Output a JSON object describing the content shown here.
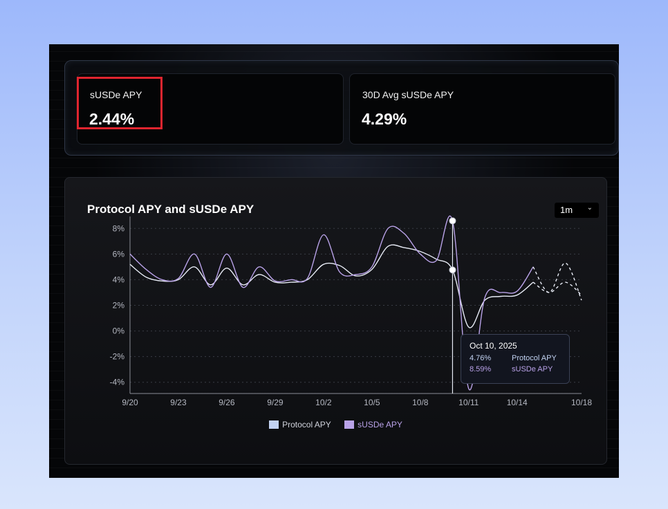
{
  "stats": {
    "apy_label": "sUSDe APY",
    "apy_value": "2.44%",
    "avg_label": "30D Avg sUSDe APY",
    "avg_value": "4.29%"
  },
  "chart_title": "Protocol APY and sUSDe APY",
  "range_select": {
    "value": "1m",
    "icon": "chevron-down-icon"
  },
  "colors": {
    "protocol": "#c3d3f3",
    "susde": "#b9a2e8",
    "highlight": "#e0252f"
  },
  "tooltip": {
    "date": "Oct 10, 2025",
    "rows": [
      {
        "value": "4.76%",
        "name": "Protocol APY"
      },
      {
        "value": "8.59%",
        "name": "sUSDe APY"
      }
    ]
  },
  "chart_data": {
    "type": "line",
    "x_ticks": [
      "9/20",
      "9/23",
      "9/26",
      "9/29",
      "10/2",
      "10/5",
      "10/8",
      "10/11",
      "10/14",
      "10/18"
    ],
    "y_ticks": [
      "8%",
      "6%",
      "4%",
      "2%",
      "0%",
      "-2%",
      "-4%"
    ],
    "ylim": [
      -4.5,
      8.5
    ],
    "grid": true,
    "legend_position": "bottom",
    "series": [
      {
        "name": "Protocol APY",
        "dates": [
          "2025-09-20",
          "2025-09-21",
          "2025-09-22",
          "2025-09-23",
          "2025-09-24",
          "2025-09-25",
          "2025-09-26",
          "2025-09-27",
          "2025-09-28",
          "2025-09-29",
          "2025-09-30",
          "2025-10-01",
          "2025-10-02",
          "2025-10-03",
          "2025-10-04",
          "2025-10-05",
          "2025-10-06",
          "2025-10-07",
          "2025-10-08",
          "2025-10-09",
          "2025-10-10",
          "2025-10-11",
          "2025-10-12",
          "2025-10-13",
          "2025-10-14",
          "2025-10-15",
          "2025-10-16",
          "2025-10-17",
          "2025-10-18"
        ],
        "values": [
          5.2,
          4.2,
          3.9,
          4.0,
          5.0,
          3.6,
          4.9,
          3.6,
          4.4,
          3.8,
          3.8,
          4.0,
          5.2,
          5.1,
          4.3,
          4.8,
          6.6,
          6.5,
          6.2,
          5.6,
          4.76,
          0.3,
          2.4,
          2.7,
          2.8,
          3.8,
          3.0,
          3.8,
          2.8
        ],
        "forecast_from": "2025-10-15"
      },
      {
        "name": "sUSDe APY",
        "dates": [
          "2025-09-20",
          "2025-09-21",
          "2025-09-22",
          "2025-09-23",
          "2025-09-24",
          "2025-09-25",
          "2025-09-26",
          "2025-09-27",
          "2025-09-28",
          "2025-09-29",
          "2025-09-30",
          "2025-10-01",
          "2025-10-02",
          "2025-10-03",
          "2025-10-04",
          "2025-10-05",
          "2025-10-06",
          "2025-10-07",
          "2025-10-08",
          "2025-10-09",
          "2025-10-10",
          "2025-10-11",
          "2025-10-12",
          "2025-10-13",
          "2025-10-14",
          "2025-10-15",
          "2025-10-16",
          "2025-10-17",
          "2025-10-18"
        ],
        "values": [
          6.0,
          4.8,
          4.0,
          4.1,
          6.0,
          3.4,
          6.0,
          3.4,
          5.0,
          3.9,
          4.0,
          4.1,
          7.5,
          4.6,
          4.4,
          5.0,
          8.0,
          7.6,
          6.0,
          5.5,
          8.59,
          -4.5,
          2.6,
          3.0,
          3.1,
          5.0,
          3.0,
          5.3,
          2.4
        ],
        "forecast_from": "2025-10-15"
      }
    ]
  }
}
